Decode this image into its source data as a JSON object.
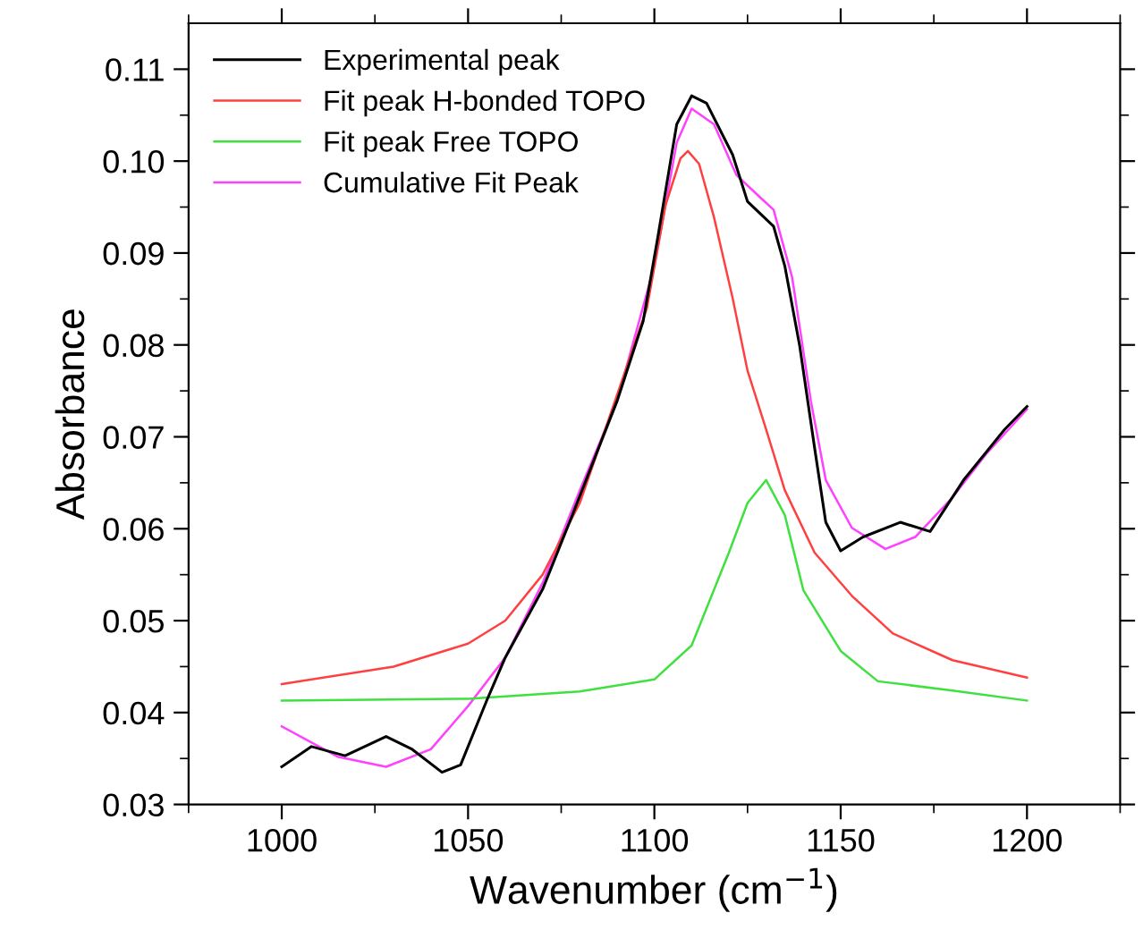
{
  "chart_data": {
    "type": "line",
    "xlabel": "Wavenumber (cm$^{−1}$)",
    "ylabel": "Absorbance",
    "xlim": [
      975,
      1225
    ],
    "ylim": [
      0.03,
      0.115
    ],
    "xticks": [
      {
        "value": 975,
        "label": null
      },
      1000,
      {
        "value": 1025,
        "label": null
      },
      1050,
      {
        "value": 1075,
        "label": null
      },
      1100,
      {
        "value": 1125,
        "label": null
      },
      1150,
      {
        "value": 1175,
        "label": null
      },
      1200,
      {
        "value": 1225,
        "label": null
      }
    ],
    "yticks": [
      0.03,
      {
        "value": 0.035,
        "label": null
      },
      0.04,
      {
        "value": 0.045,
        "label": null
      },
      0.05,
      {
        "value": 0.055,
        "label": null
      },
      0.06,
      {
        "value": 0.065,
        "label": null
      },
      0.07,
      {
        "value": 0.075,
        "label": null
      },
      0.08,
      {
        "value": 0.085,
        "label": null
      },
      0.09,
      {
        "value": 0.095,
        "label": null
      },
      {
        "value": 0.1,
        "label": "0.10"
      },
      {
        "value": 0.105,
        "label": null
      },
      0.11
    ],
    "grid": false,
    "legend": "top left",
    "marker": "none",
    "line_style": "solid",
    "series": [
      {
        "name": "Experimental peak",
        "color": "#000000",
        "x": [
          1000,
          1008,
          1017,
          1028,
          1035,
          1043,
          1048,
          1055,
          1060,
          1070,
          1078,
          1090,
          1097,
          1101,
          1106,
          1110,
          1114,
          1121,
          1125,
          1132,
          1135,
          1139,
          1143,
          1146,
          1150,
          1156,
          1166,
          1174,
          1183,
          1194,
          1200
        ],
        "values": [
          0.0341,
          0.0363,
          0.0353,
          0.0374,
          0.036,
          0.0335,
          0.0343,
          0.0413,
          0.046,
          0.0534,
          0.0615,
          0.0739,
          0.0826,
          0.0919,
          0.104,
          0.1071,
          0.1063,
          0.1007,
          0.0956,
          0.0929,
          0.0886,
          0.0799,
          0.0688,
          0.0607,
          0.0576,
          0.0591,
          0.0607,
          0.0597,
          0.0653,
          0.0708,
          0.0733
        ]
      },
      {
        "name": "Fit peak H-bonded TOPO",
        "color": "#ff4040",
        "x": [
          1000,
          1030,
          1050,
          1060,
          1070,
          1080,
          1098,
          1103,
          1107,
          1109,
          1112,
          1116,
          1121,
          1125,
          1130,
          1135,
          1143,
          1153,
          1164,
          1180,
          1200
        ],
        "values": [
          0.0431,
          0.045,
          0.0475,
          0.05,
          0.055,
          0.0628,
          0.084,
          0.0952,
          0.1003,
          0.1011,
          0.0997,
          0.0939,
          0.0851,
          0.0772,
          0.0708,
          0.0642,
          0.0574,
          0.0527,
          0.0486,
          0.0457,
          0.0438
        ]
      },
      {
        "name": "Fit peak Free TOPO",
        "color": "#40e040",
        "x": [
          1000,
          1050,
          1080,
          1100,
          1110,
          1120,
          1125,
          1130,
          1135,
          1140,
          1150,
          1160,
          1180,
          1200
        ],
        "values": [
          0.0413,
          0.0415,
          0.0423,
          0.0436,
          0.0473,
          0.0574,
          0.0628,
          0.0653,
          0.0615,
          0.0533,
          0.0467,
          0.0434,
          0.0424,
          0.0413
        ]
      },
      {
        "name": "Cumulative Fit Peak",
        "color": "#ff40ff",
        "x": [
          1000,
          1015,
          1028,
          1040,
          1050,
          1060,
          1070,
          1080,
          1090,
          1100,
          1106,
          1110,
          1116,
          1122,
          1128,
          1132,
          1137,
          1142,
          1146,
          1153,
          1162,
          1170,
          1180,
          1189,
          1200
        ],
        "values": [
          0.0385,
          0.0352,
          0.0341,
          0.036,
          0.0407,
          0.046,
          0.0541,
          0.0642,
          0.0739,
          0.0886,
          0.102,
          0.1057,
          0.104,
          0.0985,
          0.0962,
          0.0947,
          0.0873,
          0.0739,
          0.0653,
          0.0601,
          0.0578,
          0.0591,
          0.0634,
          0.0681,
          0.073
        ]
      }
    ]
  }
}
